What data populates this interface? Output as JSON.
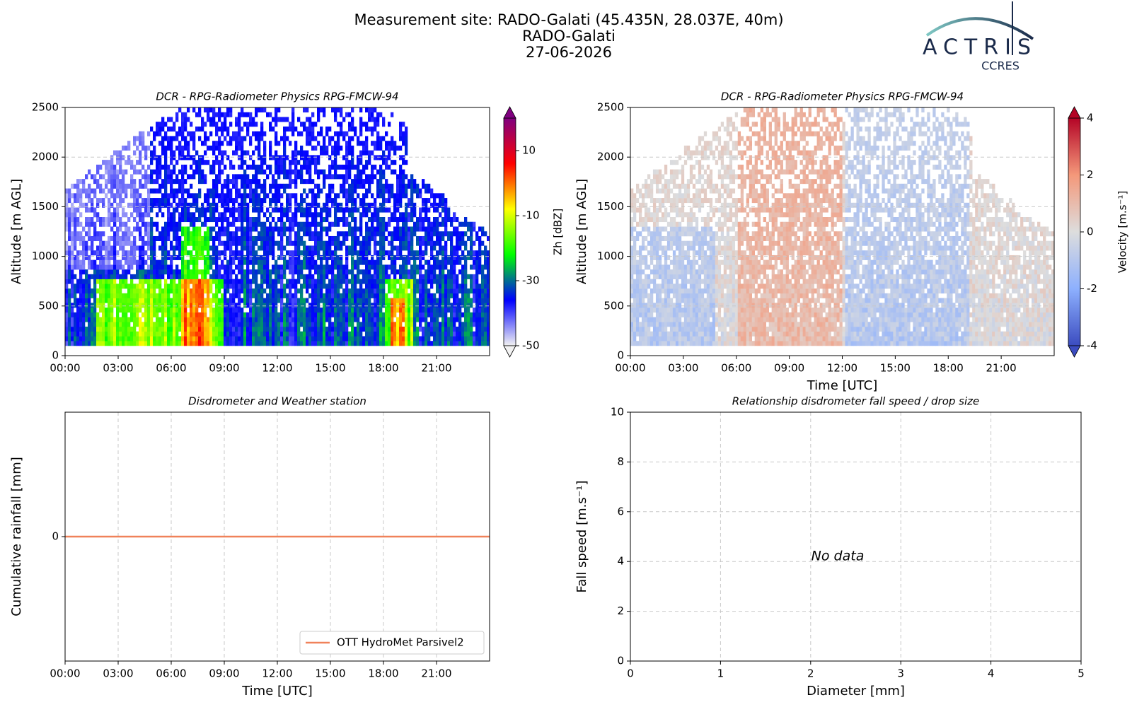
{
  "header": {
    "title_lines": [
      "Measurement site: RADO-Galati (45.435N, 28.037E, 40m)",
      "RADO-Galati",
      "27-06-2026"
    ],
    "logo": {
      "name": "ACTRIS",
      "sub": "CCRES"
    }
  },
  "chart_data": [
    {
      "type": "heatmap",
      "title": "DCR - RPG-Radiometer Physics RPG-FMCW-94",
      "ylabel": "Altitude [m AGL]",
      "xlim": [
        0,
        24
      ],
      "xticks": [
        {
          "value": 0,
          "label": "00:00"
        },
        {
          "value": 3,
          "label": "03:00"
        },
        {
          "value": 6,
          "label": "06:00"
        },
        {
          "value": 9,
          "label": "09:00"
        },
        {
          "value": 12,
          "label": "12:00"
        },
        {
          "value": 15,
          "label": "15:00"
        },
        {
          "value": 18,
          "label": "18:00"
        },
        {
          "value": 21,
          "label": "21:00"
        }
      ],
      "ylim": [
        0,
        2500
      ],
      "yticks": [
        0,
        500,
        1000,
        1500,
        2000,
        2500
      ],
      "grid": true,
      "colorbar": {
        "label": "Zh [dBZ]",
        "lim": [
          -50,
          20
        ],
        "ticks": [
          -50,
          -30,
          -10,
          10
        ],
        "colors": [
          "#f2f2f2",
          "#0000ff",
          "#00ff00",
          "#ffff00",
          "#ff0000",
          "#800080"
        ]
      }
    },
    {
      "type": "heatmap",
      "title": "DCR - RPG-Radiometer Physics RPG-FMCW-94",
      "ylabel": "Altitude [m AGL]",
      "xlabel": "Time [UTC]",
      "xlim": [
        0,
        24
      ],
      "xticks": [
        {
          "value": 0,
          "label": "00:00"
        },
        {
          "value": 3,
          "label": "03:00"
        },
        {
          "value": 6,
          "label": "06:00"
        },
        {
          "value": 9,
          "label": "09:00"
        },
        {
          "value": 12,
          "label": "12:00"
        },
        {
          "value": 15,
          "label": "15:00"
        },
        {
          "value": 18,
          "label": "18:00"
        },
        {
          "value": 21,
          "label": "21:00"
        }
      ],
      "ylim": [
        0,
        2500
      ],
      "yticks": [
        0,
        500,
        1000,
        1500,
        2000,
        2500
      ],
      "grid": true,
      "colorbar": {
        "label": "Velocity [m.s⁻¹]",
        "lim": [
          -4,
          4
        ],
        "ticks": [
          -4,
          -2,
          0,
          2,
          4
        ],
        "colors": [
          "#3b4cc0",
          "#8db0fe",
          "#dddddd",
          "#f4987a",
          "#b40426"
        ]
      }
    },
    {
      "type": "line",
      "title": "Disdrometer and Weather station",
      "ylabel": "Cumulative rainfall [mm]",
      "xlabel": "Time [UTC]",
      "xlim": [
        0,
        24
      ],
      "xticks": [
        {
          "value": 0,
          "label": "00:00"
        },
        {
          "value": 3,
          "label": "03:00"
        },
        {
          "value": 6,
          "label": "06:00"
        },
        {
          "value": 9,
          "label": "09:00"
        },
        {
          "value": 12,
          "label": "12:00"
        },
        {
          "value": 15,
          "label": "15:00"
        },
        {
          "value": 18,
          "label": "18:00"
        },
        {
          "value": 21,
          "label": "21:00"
        }
      ],
      "ylim": [
        -1,
        1
      ],
      "yticks": [
        0
      ],
      "grid": true,
      "legend": "lower right",
      "x": [
        0,
        24
      ],
      "series": [
        {
          "name": "OTT HydroMet Parsivel2",
          "color": "#f0825a",
          "values": [
            0,
            0
          ]
        }
      ]
    },
    {
      "type": "scatter",
      "title": "Relationship disdrometer fall speed / drop size",
      "xlabel": "Diameter [mm]",
      "ylabel": "Fall speed [m.s⁻¹]",
      "xlim": [
        0,
        5
      ],
      "xticks": [
        0,
        1,
        2,
        3,
        4,
        5
      ],
      "ylim": [
        0,
        10
      ],
      "yticks": [
        0,
        2,
        4,
        6,
        8,
        10
      ],
      "grid": true,
      "annotation": "No data"
    }
  ]
}
